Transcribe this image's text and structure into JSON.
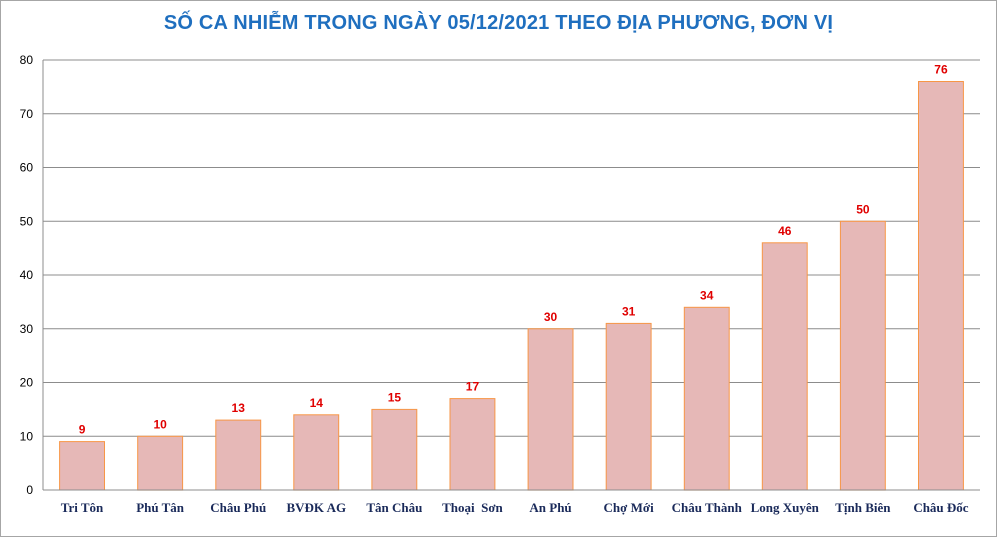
{
  "chart_data": {
    "type": "bar",
    "title": "SỐ CA NHIỄM TRONG NGÀY 05/12/2021 THEO ĐỊA PHƯƠNG, ĐƠN VỊ",
    "categories": [
      "Tri Tôn",
      "Phú Tân",
      "Châu Phú",
      "BVĐK AG",
      "Tân Châu",
      "Thoại  Sơn",
      "An Phú",
      "Chợ Mới",
      "Châu Thành",
      "Long Xuyên",
      "Tịnh Biên",
      "Châu Đốc"
    ],
    "values": [
      9,
      10,
      13,
      14,
      15,
      17,
      30,
      31,
      34,
      46,
      50,
      76
    ],
    "ylim": [
      0,
      80
    ],
    "yticks": [
      0,
      10,
      20,
      30,
      40,
      50,
      60,
      70,
      80
    ],
    "grid": true,
    "data_labels": true,
    "colors": {
      "bar_fill": "#e6b8b7",
      "bar_stroke": "#f79646",
      "label": "#e00000",
      "title": "#1f6fbf",
      "grid": "#8c8c8c"
    }
  }
}
